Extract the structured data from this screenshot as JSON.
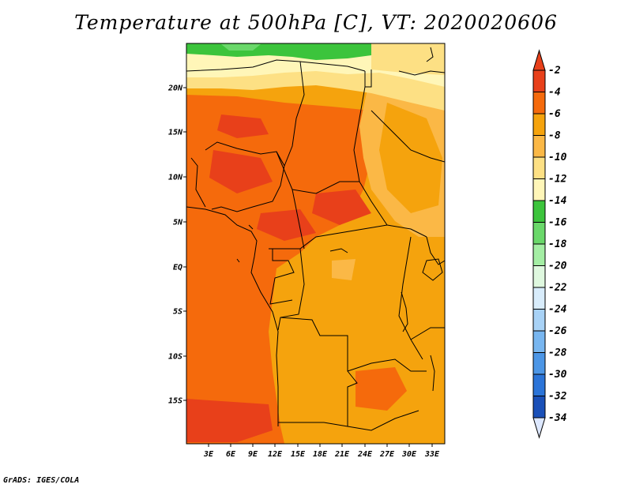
{
  "title": "Temperature at 500hPa [C], VT: 2020020606",
  "footer": "GrADS: IGES/COLA",
  "map": {
    "lat_labels": [
      "20N",
      "15N",
      "10N",
      "5N",
      "EQ",
      "5S",
      "10S",
      "15S"
    ],
    "lon_labels": [
      "3E",
      "6E",
      "9E",
      "12E",
      "15E",
      "18E",
      "21E",
      "24E",
      "27E",
      "30E",
      "33E"
    ]
  },
  "colorbar": {
    "levels": [
      {
        "label": "-2",
        "color": "#e8401a"
      },
      {
        "label": "-4",
        "color": "#f56a0c"
      },
      {
        "label": "-6",
        "color": "#f5a30d"
      },
      {
        "label": "-8",
        "color": "#fbb846"
      },
      {
        "label": "-10",
        "color": "#fde084"
      },
      {
        "label": "-12",
        "color": "#fff6b8"
      },
      {
        "label": "-14",
        "color": "#3cc43c"
      },
      {
        "label": "-16",
        "color": "#6ad86a"
      },
      {
        "label": "-18",
        "color": "#a4eea4"
      },
      {
        "label": "-20",
        "color": "#dff8df"
      },
      {
        "label": "-22",
        "color": "#d8ecfb"
      },
      {
        "label": "-24",
        "color": "#a8d2f6"
      },
      {
        "label": "-26",
        "color": "#78b6f0"
      },
      {
        "label": "-28",
        "color": "#4c96e6"
      },
      {
        "label": "-30",
        "color": "#2b74d8"
      },
      {
        "label": "-32",
        "color": "#1a50b8"
      },
      {
        "label": "-34",
        "color": "#0c2a8a"
      }
    ],
    "upper_arrow_color": "#e8401a",
    "lower_arrow_color": "#dde8ff",
    "bottom_level_color": "#0c1a6c"
  }
}
